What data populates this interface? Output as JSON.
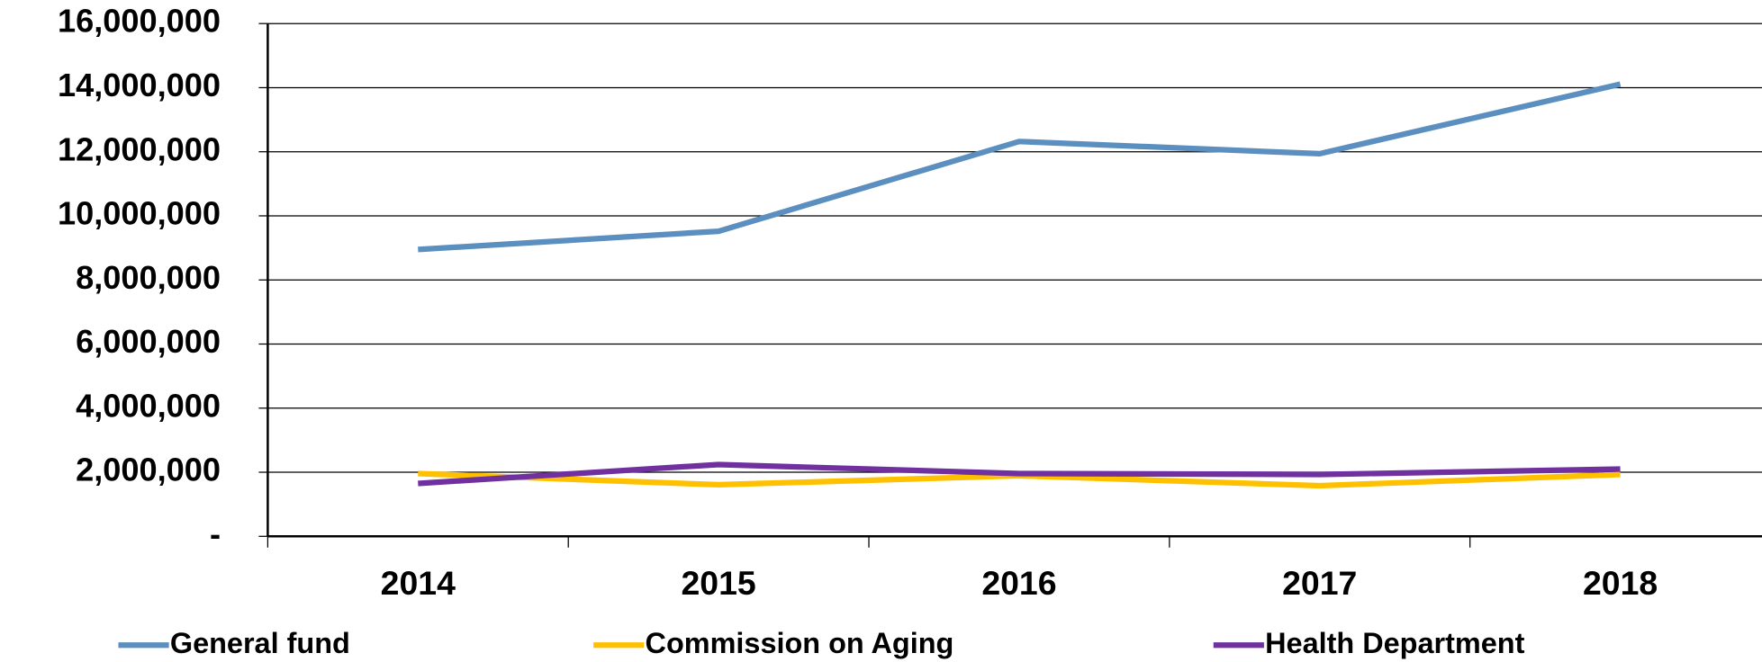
{
  "chart_data": {
    "type": "line",
    "categories": [
      "2014",
      "2015",
      "2016",
      "2017",
      "2018"
    ],
    "series": [
      {
        "name": "General fund",
        "color": "#5b8fbf",
        "values": [
          8950000,
          9520000,
          12320000,
          11940000,
          14110000
        ]
      },
      {
        "name": "Commission on Aging",
        "color": "#ffc000",
        "values": [
          1960000,
          1610000,
          1890000,
          1580000,
          1930000
        ]
      },
      {
        "name": "Health Department",
        "color": "#7030a0",
        "values": [
          1650000,
          2240000,
          1960000,
          1930000,
          2100000
        ]
      }
    ],
    "ylim": [
      0,
      16000000
    ],
    "yticks": [
      {
        "value": 0,
        "label": "-"
      },
      {
        "value": 2000000,
        "label": "2,000,000"
      },
      {
        "value": 4000000,
        "label": "4,000,000"
      },
      {
        "value": 6000000,
        "label": "6,000,000"
      },
      {
        "value": 8000000,
        "label": "8,000,000"
      },
      {
        "value": 10000000,
        "label": "10,000,000"
      },
      {
        "value": 12000000,
        "label": "12,000,000"
      },
      {
        "value": 14000000,
        "label": "14,000,000"
      },
      {
        "value": 16000000,
        "label": "16,000,000"
      }
    ],
    "grid": true
  }
}
